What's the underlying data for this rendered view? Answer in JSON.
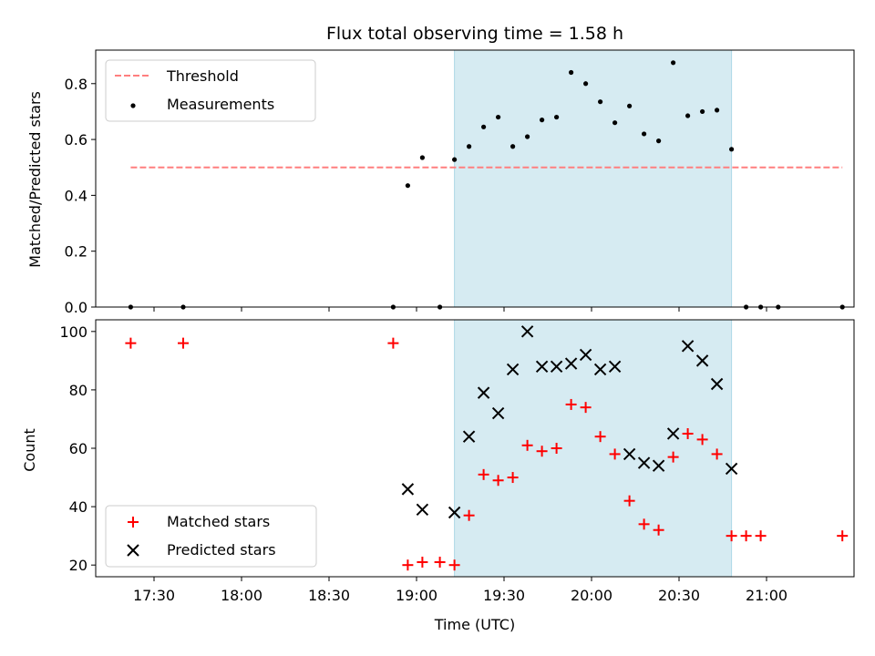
{
  "chart_data": [
    {
      "type": "scatter",
      "title": "Flux total observing time = 1.58 h",
      "xlabel": "",
      "ylabel": "Matched/Predicted stars",
      "ylim": [
        0,
        0.92
      ],
      "yticks": [
        0.0,
        0.2,
        0.4,
        0.6,
        0.8
      ],
      "ytick_labels": [
        "0.0",
        "0.2",
        "0.4",
        "0.6",
        "0.8"
      ],
      "legend": {
        "position": "top-left",
        "entries": [
          "Threshold",
          "Measurements"
        ]
      },
      "threshold": {
        "name": "Threshold",
        "y": 0.5,
        "x_range": [
          "17:22",
          "21:26"
        ],
        "color": "#ff7f7f"
      },
      "series": [
        {
          "name": "Measurements",
          "color": "#000000",
          "x": [
            "17:22",
            "17:40",
            "18:52",
            "18:57",
            "19:02",
            "19:08",
            "19:13",
            "19:18",
            "19:23",
            "19:28",
            "19:33",
            "19:38",
            "19:43",
            "19:48",
            "19:53",
            "19:58",
            "20:03",
            "20:08",
            "20:13",
            "20:18",
            "20:23",
            "20:28",
            "20:33",
            "20:38",
            "20:43",
            "20:48",
            "20:53",
            "20:58",
            "21:04",
            "21:26"
          ],
          "y": [
            0.0,
            0.0,
            0.0,
            0.435,
            0.535,
            0.0,
            0.528,
            0.575,
            0.645,
            0.68,
            0.575,
            0.61,
            0.67,
            0.68,
            0.84,
            0.8,
            0.735,
            0.66,
            0.72,
            0.62,
            0.595,
            0.875,
            0.685,
            0.7,
            0.705,
            0.565,
            0.0,
            0.0,
            0.0,
            0.0
          ]
        }
      ],
      "highlight": {
        "x_start": "19:13",
        "x_end": "20:48",
        "color": "#add8e6"
      }
    },
    {
      "type": "scatter",
      "title": "",
      "xlabel": "Time (UTC)",
      "ylabel": "Count",
      "ylim": [
        16,
        104
      ],
      "yticks": [
        20,
        40,
        60,
        80,
        100
      ],
      "ytick_labels": [
        "20",
        "40",
        "60",
        "80",
        "100"
      ],
      "xlim": [
        "17:10",
        "21:30"
      ],
      "xticks": [
        "17:30",
        "18:00",
        "18:30",
        "19:00",
        "19:30",
        "20:00",
        "20:30",
        "21:00"
      ],
      "xtick_labels": [
        "17:30",
        "18:00",
        "18:30",
        "19:00",
        "19:30",
        "20:00",
        "20:30",
        "21:00"
      ],
      "legend": {
        "position": "bottom-left",
        "entries": [
          "Matched stars",
          "Predicted stars"
        ]
      },
      "series": [
        {
          "name": "Matched stars",
          "marker": "+",
          "color": "#ff0000",
          "x": [
            "17:22",
            "17:40",
            "18:52",
            "18:57",
            "19:02",
            "19:08",
            "19:13",
            "19:18",
            "19:23",
            "19:28",
            "19:33",
            "19:38",
            "19:43",
            "19:48",
            "19:53",
            "19:58",
            "20:03",
            "20:08",
            "20:13",
            "20:18",
            "20:23",
            "20:28",
            "20:33",
            "20:38",
            "20:43",
            "20:48",
            "20:53",
            "20:58",
            "21:26"
          ],
          "y": [
            96,
            96,
            96,
            20,
            21,
            21,
            20,
            37,
            51,
            49,
            50,
            61,
            59,
            60,
            75,
            74,
            64,
            58,
            42,
            34,
            32,
            57,
            65,
            63,
            58,
            30,
            30,
            30,
            30
          ]
        },
        {
          "name": "Predicted stars",
          "marker": "x",
          "color": "#000000",
          "x": [
            "18:57",
            "19:02",
            "19:13",
            "19:18",
            "19:23",
            "19:28",
            "19:33",
            "19:38",
            "19:43",
            "19:48",
            "19:53",
            "19:58",
            "20:03",
            "20:08",
            "20:13",
            "20:18",
            "20:23",
            "20:28",
            "20:33",
            "20:38",
            "20:43",
            "20:48"
          ],
          "y": [
            46,
            39,
            38,
            64,
            79,
            72,
            87,
            100,
            88,
            88,
            89,
            92,
            87,
            88,
            58,
            55,
            54,
            65,
            95,
            90,
            82,
            53
          ]
        }
      ],
      "highlight": {
        "x_start": "19:13",
        "x_end": "20:48",
        "color": "#add8e6"
      }
    }
  ]
}
